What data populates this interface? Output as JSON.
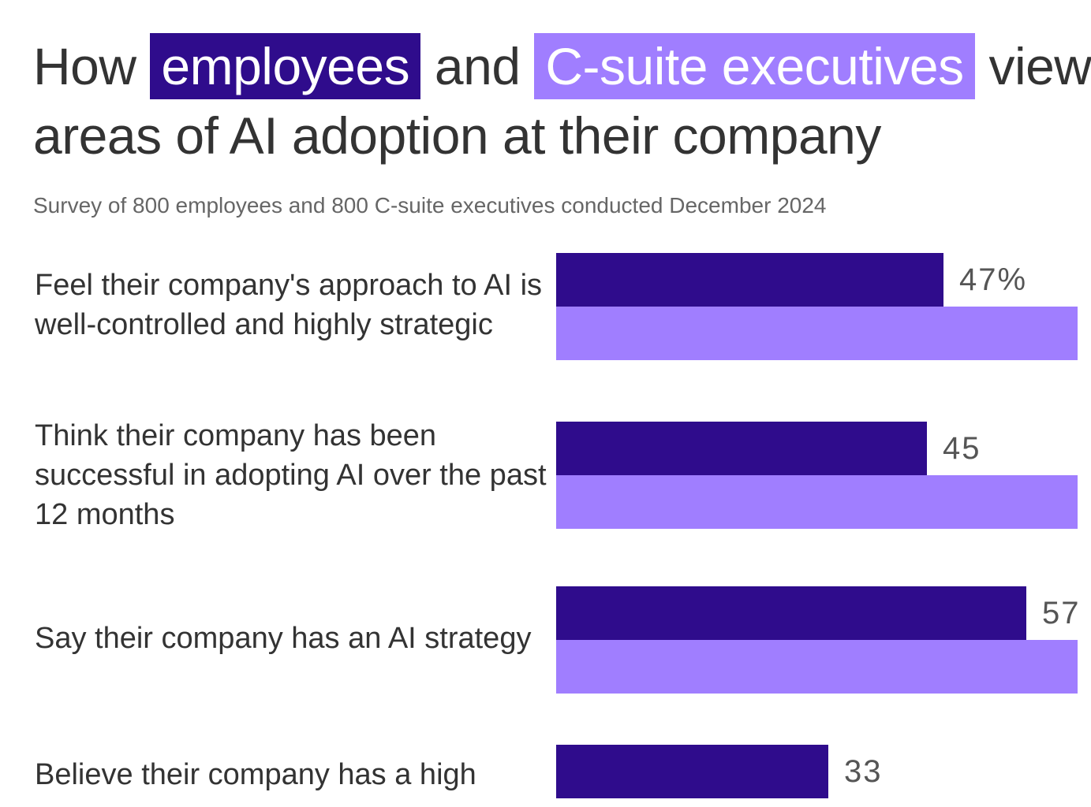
{
  "title": {
    "prefix": "How",
    "employees": "employees",
    "and": "and",
    "executives": "C-suite executives",
    "rest": "view",
    "line2": "areas of AI adoption at their company"
  },
  "subtitle": "Survey of 800 employees and 800 C-suite executives conducted December 2024",
  "colors": {
    "employees": "#2f0c8c",
    "executives": "#a07eff",
    "text": "#333333",
    "subtle": "#666666"
  },
  "chart_data": {
    "type": "bar",
    "orientation": "horizontal",
    "categories": [
      "Feel their company's approach to AI is well-controlled and highly strategic",
      "Think their company has been successful in adopting AI over the past 12 months",
      "Say their company has an AI strategy",
      "Believe their company has a high"
    ],
    "series": [
      {
        "name": "employees",
        "values": [
          47,
          45,
          57,
          33
        ]
      },
      {
        "name": "C-suite executives",
        "values": [
          null,
          null,
          null,
          null
        ]
      }
    ],
    "value_labels": [
      "47%",
      "45",
      "57",
      "33"
    ],
    "xlim": [
      0,
      100
    ]
  }
}
